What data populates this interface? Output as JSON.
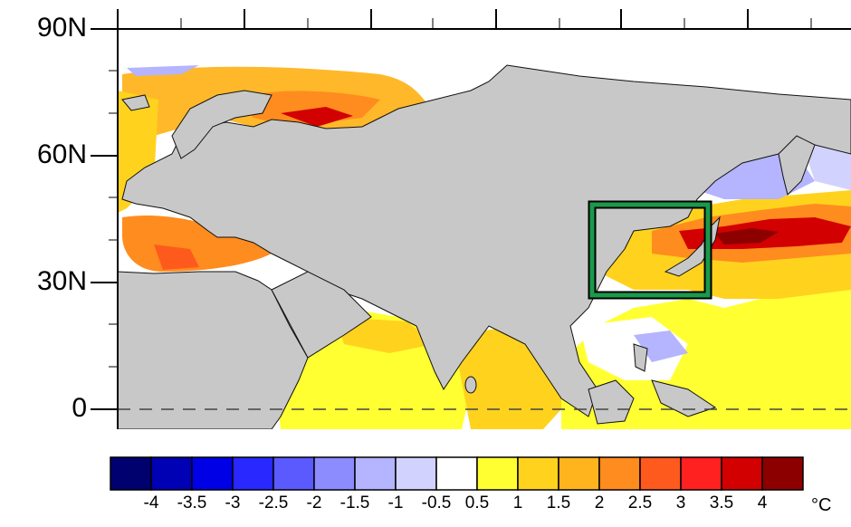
{
  "map": {
    "latitude_labels": [
      {
        "label": "90N",
        "lat": 90
      },
      {
        "label": "60N",
        "lat": 60
      },
      {
        "label": "30N",
        "lat": 30
      },
      {
        "label": "0",
        "lat": 0
      }
    ],
    "land_color": "#c8c8c8",
    "ocean_default_color": "#ffffff",
    "highlight_box_color": "#1a9a4a",
    "highlight_box_region": "East China Sea / Sea of Japan / Japan"
  },
  "colorbar": {
    "colors": [
      "#00006e",
      "#0000b4",
      "#0000e6",
      "#2828ff",
      "#5a5aff",
      "#8c8cff",
      "#b4b4ff",
      "#d2d2ff",
      "#ffffff",
      "#ffff32",
      "#ffd21e",
      "#ffb41e",
      "#ff8c1e",
      "#ff5a1e",
      "#ff2020",
      "#d20000",
      "#8c0000"
    ],
    "tick_labels": [
      "-4",
      "-3.5",
      "-3",
      "-2.5",
      "-2",
      "-1.5",
      "-1",
      "-0.5",
      "0.5",
      "1",
      "1.5",
      "2",
      "2.5",
      "3",
      "3.5",
      "4"
    ],
    "unit": "°C"
  }
}
